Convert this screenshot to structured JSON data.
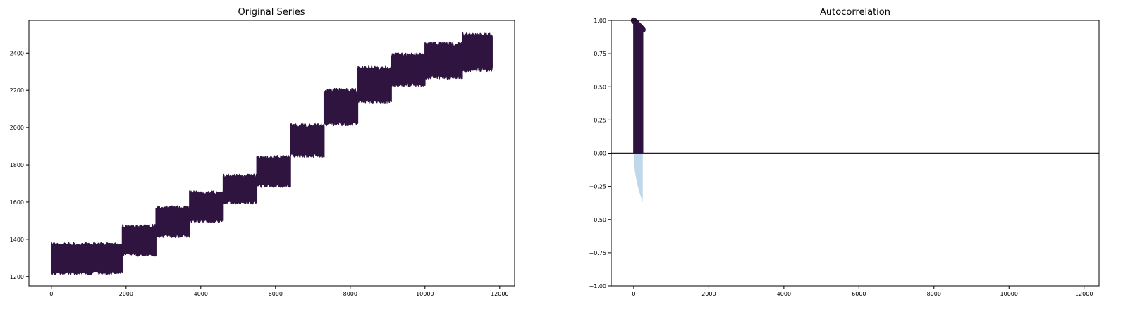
{
  "colors": {
    "series": "#2f1440",
    "confidence": "#b7d3e8",
    "axis": "#000000",
    "background": "#ffffff"
  },
  "chart_data": [
    {
      "type": "line",
      "title": "Original Series",
      "xlabel": "",
      "ylabel": "",
      "xlim": [
        -600,
        12400
      ],
      "ylim": [
        1150,
        2575
      ],
      "x_ticks": [
        0,
        2000,
        4000,
        6000,
        8000,
        10000,
        12000
      ],
      "y_ticks": [
        1200,
        1400,
        1600,
        1800,
        2000,
        2200,
        2400
      ],
      "grid": false,
      "segments": [
        {
          "x_start": 0,
          "x_end": 1900,
          "low": 1210,
          "high": 1385
        },
        {
          "x_start": 1900,
          "x_end": 2800,
          "low": 1310,
          "high": 1480
        },
        {
          "x_start": 2800,
          "x_end": 3700,
          "low": 1410,
          "high": 1580
        },
        {
          "x_start": 3700,
          "x_end": 4600,
          "low": 1490,
          "high": 1660
        },
        {
          "x_start": 4600,
          "x_end": 5500,
          "low": 1590,
          "high": 1750
        },
        {
          "x_start": 5500,
          "x_end": 6400,
          "low": 1680,
          "high": 1850
        },
        {
          "x_start": 6400,
          "x_end": 7300,
          "low": 1840,
          "high": 2020
        },
        {
          "x_start": 7300,
          "x_end": 8200,
          "low": 2010,
          "high": 2210
        },
        {
          "x_start": 8200,
          "x_end": 9100,
          "low": 2130,
          "high": 2330
        },
        {
          "x_start": 9100,
          "x_end": 10000,
          "low": 2220,
          "high": 2400
        },
        {
          "x_start": 10000,
          "x_end": 11000,
          "low": 2260,
          "high": 2460
        },
        {
          "x_start": 11000,
          "x_end": 11800,
          "low": 2300,
          "high": 2510
        }
      ]
    },
    {
      "type": "bar",
      "title": "Autocorrelation",
      "xlabel": "",
      "ylabel": "",
      "xlim": [
        -600,
        12400
      ],
      "ylim": [
        -1.0,
        1.0
      ],
      "x_ticks": [
        0,
        2000,
        4000,
        6000,
        8000,
        10000,
        12000
      ],
      "y_ticks": [
        -1.0,
        -0.75,
        -0.5,
        -0.25,
        0.0,
        0.25,
        0.5,
        0.75,
        1.0
      ],
      "y_tick_labels": [
        "−1.00",
        "−0.75",
        "−0.50",
        "−0.25",
        "0.00",
        "0.25",
        "0.50",
        "0.75",
        "1.00"
      ],
      "grid": false,
      "lags_max": 240,
      "acf_start": 1.0,
      "acf_end": 0.93,
      "confidence_bound_at_max_lag": -0.37,
      "zero_line": 0.0
    }
  ]
}
